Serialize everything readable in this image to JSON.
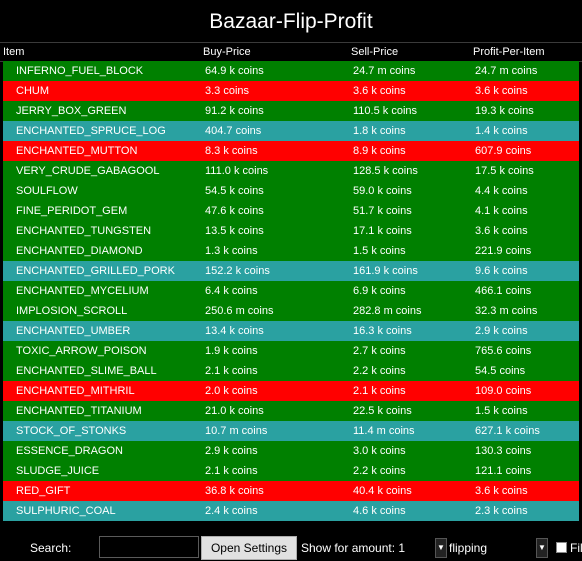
{
  "title": "Bazaar-Flip-Profit",
  "columns": {
    "item": "Item",
    "buy": "Buy-Price",
    "sell": "Sell-Price",
    "profit": "Profit-Per-Item"
  },
  "colors": {
    "green": "#008000",
    "red": "#ff0000",
    "teal": "#2aa1a1"
  },
  "rows": [
    {
      "item": "INFERNO_FUEL_BLOCK",
      "buy": "64.9 k coins",
      "sell": "24.7 m coins",
      "profit": "24.7 m coins",
      "color": "green"
    },
    {
      "item": "CHUM",
      "buy": "3.3  coins",
      "sell": "3.6 k coins",
      "profit": "3.6 k coins",
      "color": "red"
    },
    {
      "item": "JERRY_BOX_GREEN",
      "buy": "91.2 k coins",
      "sell": "110.5 k coins",
      "profit": "19.3 k coins",
      "color": "green"
    },
    {
      "item": "ENCHANTED_SPRUCE_LOG",
      "buy": "404.7  coins",
      "sell": "1.8 k coins",
      "profit": "1.4 k coins",
      "color": "teal"
    },
    {
      "item": "ENCHANTED_MUTTON",
      "buy": "8.3 k coins",
      "sell": "8.9 k coins",
      "profit": "607.9  coins",
      "color": "red"
    },
    {
      "item": "VERY_CRUDE_GABAGOOL",
      "buy": "111.0 k coins",
      "sell": "128.5 k coins",
      "profit": "17.5 k coins",
      "color": "green"
    },
    {
      "item": "SOULFLOW",
      "buy": "54.5 k coins",
      "sell": "59.0 k coins",
      "profit": "4.4 k coins",
      "color": "green"
    },
    {
      "item": "FINE_PERIDOT_GEM",
      "buy": "47.6 k coins",
      "sell": "51.7 k coins",
      "profit": "4.1 k coins",
      "color": "green"
    },
    {
      "item": "ENCHANTED_TUNGSTEN",
      "buy": "13.5 k coins",
      "sell": "17.1 k coins",
      "profit": "3.6 k coins",
      "color": "green"
    },
    {
      "item": "ENCHANTED_DIAMOND",
      "buy": "1.3 k coins",
      "sell": "1.5 k coins",
      "profit": "221.9  coins",
      "color": "green"
    },
    {
      "item": "ENCHANTED_GRILLED_PORK",
      "buy": "152.2 k coins",
      "sell": "161.9 k coins",
      "profit": "9.6 k coins",
      "color": "teal"
    },
    {
      "item": "ENCHANTED_MYCELIUM",
      "buy": "6.4 k coins",
      "sell": "6.9 k coins",
      "profit": "466.1  coins",
      "color": "green"
    },
    {
      "item": "IMPLOSION_SCROLL",
      "buy": "250.6 m coins",
      "sell": "282.8 m coins",
      "profit": "32.3 m coins",
      "color": "green"
    },
    {
      "item": "ENCHANTED_UMBER",
      "buy": "13.4 k coins",
      "sell": "16.3 k coins",
      "profit": "2.9 k coins",
      "color": "teal"
    },
    {
      "item": "TOXIC_ARROW_POISON",
      "buy": "1.9 k coins",
      "sell": "2.7 k coins",
      "profit": "765.6  coins",
      "color": "green"
    },
    {
      "item": "ENCHANTED_SLIME_BALL",
      "buy": "2.1 k coins",
      "sell": "2.2 k coins",
      "profit": "54.5  coins",
      "color": "green"
    },
    {
      "item": "ENCHANTED_MITHRIL",
      "buy": "2.0 k coins",
      "sell": "2.1 k coins",
      "profit": "109.0  coins",
      "color": "red"
    },
    {
      "item": "ENCHANTED_TITANIUM",
      "buy": "21.0 k coins",
      "sell": "22.5 k coins",
      "profit": "1.5 k coins",
      "color": "green"
    },
    {
      "item": "STOCK_OF_STONKS",
      "buy": "10.7 m coins",
      "sell": "11.4 m coins",
      "profit": "627.1 k coins",
      "color": "teal"
    },
    {
      "item": "ESSENCE_DRAGON",
      "buy": "2.9 k coins",
      "sell": "3.0 k coins",
      "profit": "130.3  coins",
      "color": "green"
    },
    {
      "item": "SLUDGE_JUICE",
      "buy": "2.1 k coins",
      "sell": "2.2 k coins",
      "profit": "121.1  coins",
      "color": "green"
    },
    {
      "item": "RED_GIFT",
      "buy": "36.8 k coins",
      "sell": "40.4 k coins",
      "profit": "3.6 k coins",
      "color": "red"
    },
    {
      "item": "SULPHURIC_COAL",
      "buy": "2.4 k coins",
      "sell": "4.6 k coins",
      "profit": "2.3 k coins",
      "color": "teal"
    }
  ],
  "bottom": {
    "search_label": "Search:",
    "search_value": "",
    "open_settings": "Open Settings",
    "show_amount_label": "Show for amount: 1",
    "mode_value": "flipping",
    "filter_label": "Fil"
  }
}
